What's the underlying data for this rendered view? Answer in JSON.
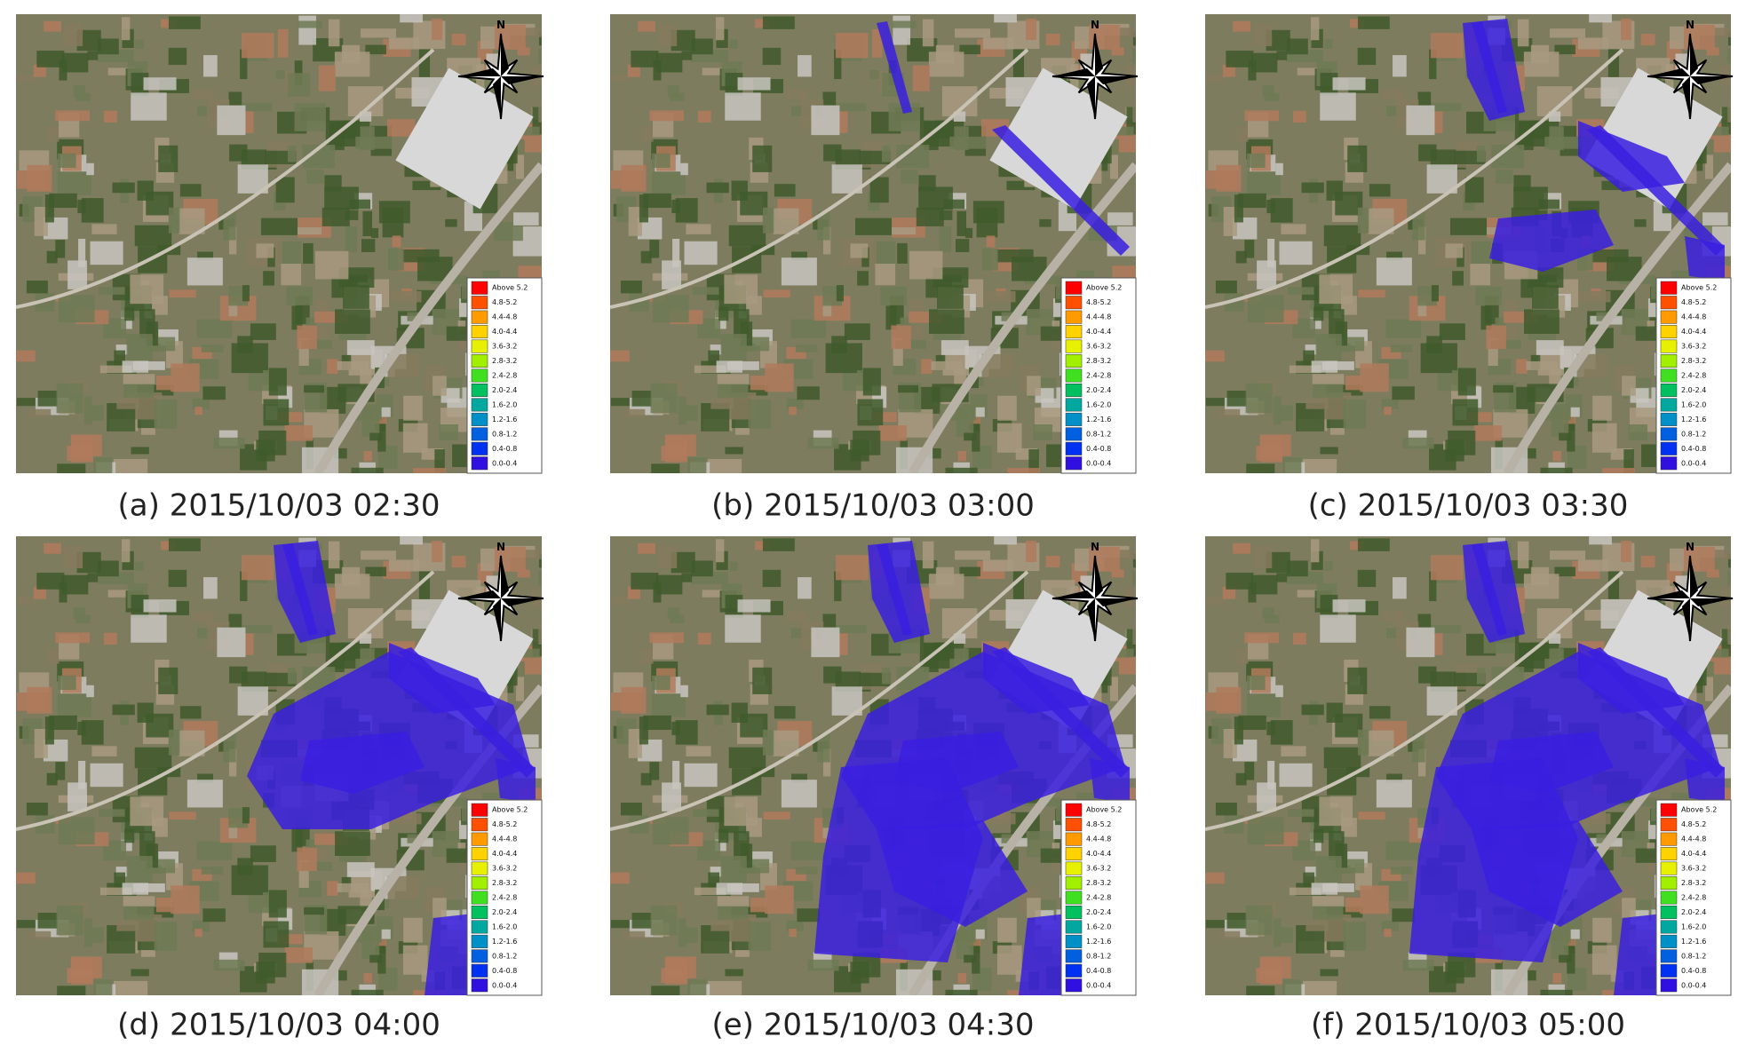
{
  "panels": [
    {
      "caption": "(a) 2015/10/03 02:30"
    },
    {
      "caption": "(b) 2015/10/03 03:00"
    },
    {
      "caption": "(c) 2015/10/03 03:30"
    },
    {
      "caption": "(d) 2015/10/03 04:00"
    },
    {
      "caption": "(e) 2015/10/03 04:30"
    },
    {
      "caption": "(f) 2015/10/03 05:00"
    }
  ],
  "compass": "N",
  "legend": [
    {
      "label": "Above 5.2",
      "color": "#ff0000"
    },
    {
      "label": "4.8-5.2",
      "color": "#ff5000"
    },
    {
      "label": "4.4-4.8",
      "color": "#ff9a00"
    },
    {
      "label": "4.0-4.4",
      "color": "#ffd200"
    },
    {
      "label": "3.6-3.2",
      "color": "#e6f000"
    },
    {
      "label": "2.8-3.2",
      "color": "#a0f000"
    },
    {
      "label": "2.4-2.8",
      "color": "#40e020"
    },
    {
      "label": "2.0-2.4",
      "color": "#00c060"
    },
    {
      "label": "1.6-2.0",
      "color": "#00a8a0"
    },
    {
      "label": "1.2-1.6",
      "color": "#0090c8"
    },
    {
      "label": "0.8-1.2",
      "color": "#0060e0"
    },
    {
      "label": "0.4-0.8",
      "color": "#0030f0"
    },
    {
      "label": "0.0-0.4",
      "color": "#3010e0"
    }
  ]
}
